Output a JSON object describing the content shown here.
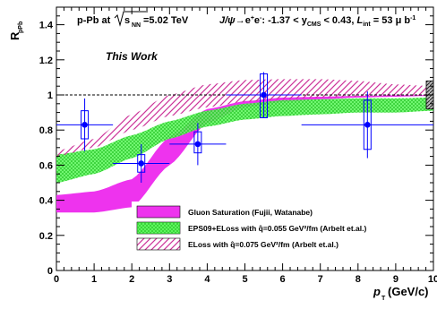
{
  "chart_data": {
    "type": "scatter",
    "title": "p-Pb at √s_NN=5.02 TeV",
    "annotation_right": "J/ψ→e⁺e⁻: -1.37 < y_CMS < 0.43, L_int = 53 μb⁻¹",
    "this_work": "This Work",
    "xlabel": "p_T (GeV/c)",
    "ylabel": "R_pPb",
    "xlim": [
      0,
      10
    ],
    "ylim": [
      0,
      1.5
    ],
    "x_ticks": [
      0,
      1,
      2,
      3,
      4,
      5,
      6,
      7,
      8,
      9,
      10
    ],
    "y_ticks": [
      0,
      0.2,
      0.4,
      0.6,
      0.8,
      1,
      1.2,
      1.4
    ],
    "reference_line": 1,
    "global_uncertainty": [
      0.92,
      1.08
    ],
    "series": [
      {
        "name": "data",
        "color": "#0000ff",
        "points": [
          {
            "x": 0.75,
            "y": 0.83,
            "xerr_lo": 0.75,
            "xerr_hi": 0.75,
            "stat": 0.15,
            "syst_lo": 0.08,
            "syst_hi": 0.08
          },
          {
            "x": 2.25,
            "y": 0.61,
            "xerr_lo": 0.75,
            "xerr_hi": 0.75,
            "stat": 0.11,
            "syst_lo": 0.05,
            "syst_hi": 0.05
          },
          {
            "x": 3.75,
            "y": 0.72,
            "xerr_lo": 0.75,
            "xerr_hi": 0.75,
            "stat": 0.12,
            "syst_lo": 0.05,
            "syst_hi": 0.07
          },
          {
            "x": 5.5,
            "y": 1.0,
            "xerr_lo": 1.0,
            "xerr_hi": 1.0,
            "stat": 0.13,
            "syst_lo": 0.13,
            "syst_hi": 0.12
          },
          {
            "x": 8.25,
            "y": 0.83,
            "xerr_lo": 1.75,
            "xerr_hi": 1.75,
            "stat": 0.19,
            "syst_lo": 0.14,
            "syst_hi": 0.14
          }
        ]
      }
    ],
    "bands": [
      {
        "name": "Gluon Saturation (Fujii, Watanabe)",
        "color": "#ee33ee",
        "style": "solid",
        "x": [
          0,
          1,
          2,
          3,
          4,
          5,
          6,
          7,
          8,
          9,
          10
        ],
        "lower": [
          0.33,
          0.33,
          0.36,
          0.6,
          0.84,
          0.93,
          0.96,
          0.975,
          0.985,
          0.99,
          0.995
        ],
        "upper": [
          0.43,
          0.45,
          0.52,
          0.76,
          0.92,
          0.965,
          0.985,
          0.99,
          0.995,
          0.998,
          1.0
        ]
      },
      {
        "name": "EPS09+ELoss with q̂=0.055 GeV²/fm (Arbelt et.al.)",
        "color": "#66ff66",
        "style": "hatch",
        "x": [
          0,
          1,
          2,
          3,
          4,
          5,
          6,
          7,
          8,
          9,
          10
        ],
        "lower": [
          0.5,
          0.55,
          0.64,
          0.75,
          0.82,
          0.86,
          0.88,
          0.89,
          0.9,
          0.9,
          0.91
        ],
        "upper": [
          0.66,
          0.69,
          0.77,
          0.85,
          0.91,
          0.95,
          0.97,
          0.975,
          0.98,
          0.98,
          0.985
        ]
      },
      {
        "name": "ELoss with q̂=0.075 GeV²/fm (Arbelt et.al.)",
        "color": "#dd66bb",
        "style": "diagonal",
        "x": [
          0,
          1,
          2,
          3,
          4,
          5,
          6,
          7,
          8,
          9,
          10
        ],
        "lower": [
          0.65,
          0.7,
          0.8,
          0.88,
          0.93,
          0.96,
          0.975,
          0.985,
          0.99,
          0.995,
          0.995
        ],
        "upper": [
          0.68,
          0.75,
          0.89,
          1.0,
          1.06,
          1.085,
          1.09,
          1.09,
          1.08,
          1.06,
          1.05
        ]
      }
    ]
  }
}
